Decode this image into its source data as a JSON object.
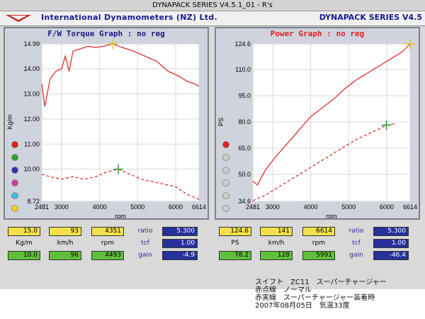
{
  "window": {
    "title": "DYNAPACK SERIES V4.5.1_01  - R's"
  },
  "header": {
    "company": "International Dynamometers (NZ) Ltd.",
    "series": "DYNAPACK SERIES V4.5"
  },
  "chart_data": [
    {
      "type": "line",
      "title": "F/W Torque Graph : no reg",
      "xlabel": "rpm",
      "ylabel": "Kg/m",
      "xlim": [
        2481,
        6614
      ],
      "ylim": [
        8.72,
        14.99
      ],
      "xticks": [
        "2481",
        "3000",
        "4000",
        "5000",
        "6000",
        "6614"
      ],
      "yticks": [
        "14.99",
        "14.00",
        "13.00",
        "12.00",
        "11.00",
        "10.00",
        "8.72"
      ],
      "series": [
        {
          "style": "solid",
          "color": "#e02020",
          "x": [
            2481,
            2560,
            2700,
            2850,
            3000,
            3100,
            3200,
            3300,
            3500,
            3700,
            3900,
            4100,
            4351,
            4600,
            4900,
            5200,
            5500,
            5800,
            6100,
            6300,
            6500,
            6614
          ],
          "y": [
            13.4,
            12.5,
            13.6,
            13.9,
            14.0,
            14.5,
            13.9,
            14.7,
            14.8,
            14.9,
            14.85,
            14.9,
            14.99,
            14.85,
            14.7,
            14.5,
            14.3,
            13.9,
            13.7,
            13.5,
            13.4,
            13.3
          ]
        },
        {
          "style": "dashed",
          "color": "#e02020",
          "x": [
            2481,
            2700,
            3000,
            3300,
            3600,
            3900,
            4200,
            4493,
            4800,
            5100,
            5400,
            5700,
            6000,
            6300,
            6614
          ],
          "y": [
            9.8,
            9.7,
            9.6,
            9.7,
            9.6,
            9.7,
            9.9,
            10.0,
            9.8,
            9.6,
            9.5,
            9.4,
            9.3,
            9.0,
            8.8
          ]
        }
      ],
      "markers": [
        {
          "x": 4351,
          "y": 14.99,
          "color": "#e0c020"
        },
        {
          "x": 4493,
          "y": 10.0,
          "color": "#30a030"
        }
      ]
    },
    {
      "type": "line",
      "title": "Power Graph : no reg",
      "xlabel": "rpm",
      "ylabel": "PS",
      "xlim": [
        2481,
        6614
      ],
      "ylim": [
        34.6,
        124.6
      ],
      "xticks": [
        "2481",
        "3000",
        "4000",
        "5000",
        "6000",
        "6614"
      ],
      "yticks": [
        "124.6",
        "110.0",
        "95.0",
        "80.0",
        "65.0",
        "50.0",
        "34.6"
      ],
      "series": [
        {
          "style": "solid",
          "color": "#e02020",
          "x": [
            2481,
            2600,
            2800,
            3000,
            3200,
            3400,
            3600,
            3800,
            4000,
            4300,
            4600,
            4900,
            5200,
            5500,
            5800,
            6100,
            6400,
            6614
          ],
          "y": [
            46,
            44,
            52,
            58,
            63,
            68,
            73,
            78,
            83,
            88,
            93,
            99,
            104,
            108,
            112,
            116,
            120,
            124.6
          ]
        },
        {
          "style": "dashed",
          "color": "#e02020",
          "x": [
            2481,
            2800,
            3100,
            3400,
            3700,
            4000,
            4300,
            4600,
            4900,
            5200,
            5500,
            5800,
            5991,
            6200
          ],
          "y": [
            35,
            38,
            42,
            46,
            50,
            54,
            58,
            62,
            66,
            70,
            73,
            76,
            78.2,
            79
          ]
        }
      ],
      "markers": [
        {
          "x": 6614,
          "y": 124.6,
          "color": "#e0c020"
        },
        {
          "x": 5991,
          "y": 78.2,
          "color": "#30a030"
        }
      ]
    }
  ],
  "readouts": {
    "left": {
      "top": [
        "15.0",
        "93",
        "4351"
      ],
      "bottom": [
        "10.0",
        "96",
        "4493"
      ],
      "units": [
        "Kg/m",
        "km/h",
        "rpm"
      ],
      "ratio_label": "ratio",
      "ratio": "5.300",
      "tcf_label": "tcf",
      "tcf": "1.00",
      "gain_label": "gain",
      "gain": "-4.9"
    },
    "right": {
      "top": [
        "124.6",
        "141",
        "6614"
      ],
      "bottom": [
        "78.2",
        "128",
        "5991"
      ],
      "units": [
        "PS",
        "km/h",
        "rpm"
      ],
      "ratio_label": "ratio",
      "ratio": "5.300",
      "tcf_label": "tcf",
      "tcf": "1.00",
      "gain_label": "gain",
      "gain": "-46.4"
    }
  },
  "channel_dots": {
    "left": [
      "#e02020",
      "#30a030",
      "#3030b0",
      "#d040a0",
      "#40c0e0",
      "#f0d020"
    ],
    "right": [
      "#e02020",
      "#cccccc",
      "#cccccc",
      "#cccccc",
      "#cccccc",
      "#cccccc"
    ]
  },
  "notes": [
    "スイフト　ZC11　スーパーチャージャー",
    "赤点線　ノーマル",
    "赤実線　スーパーチャージャー装着時",
    "2007年08月05日　気温33度"
  ]
}
